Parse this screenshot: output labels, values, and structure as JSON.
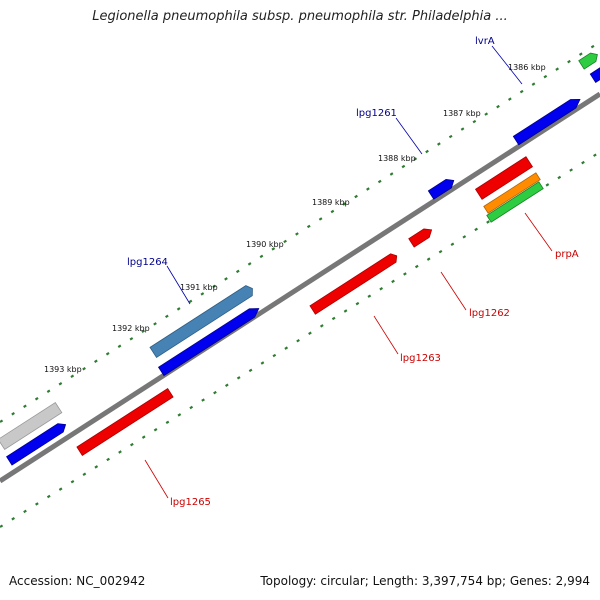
{
  "title": "Legionella pneumophila subsp. pneumophila str. Philadelphia ...",
  "footer": {
    "accession": "Accession: NC_002942",
    "topology": "Topology: circular; Length: 3,397,754 bp; Genes: 2,994"
  },
  "colors": {
    "backbone": "#7a7a7a",
    "tick": "#2e7d32",
    "forward_gene": "#0000ee",
    "reverse_gene": "#ee0000",
    "label_forward": "#00008b",
    "label_reverse": "#cc0000"
  },
  "scale_ticks": [
    {
      "label": "1386 kbp"
    },
    {
      "label": "1387 kbp"
    },
    {
      "label": "1388 kbp"
    },
    {
      "label": "1389 kbp"
    },
    {
      "label": "1390 kbp"
    },
    {
      "label": "1391 kbp"
    },
    {
      "label": "1392 kbp"
    },
    {
      "label": "1393 kbp"
    }
  ],
  "gene_labels": [
    {
      "label": "lvrA",
      "strand": "forward"
    },
    {
      "label": "lpg1261",
      "strand": "forward"
    },
    {
      "label": "lpg1264",
      "strand": "forward"
    },
    {
      "label": "prpA",
      "strand": "reverse"
    },
    {
      "label": "lpg1262",
      "strand": "reverse"
    },
    {
      "label": "lpg1263",
      "strand": "reverse"
    },
    {
      "label": "lpg1265",
      "strand": "reverse"
    }
  ]
}
